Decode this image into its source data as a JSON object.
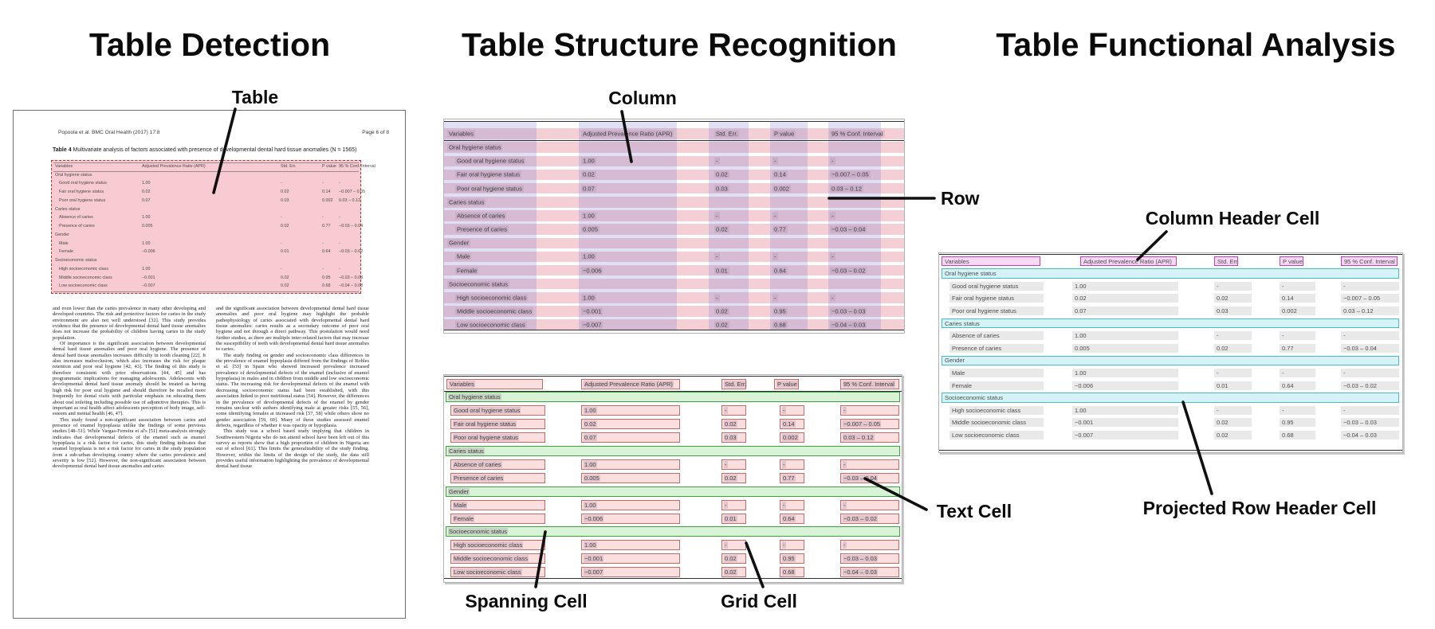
{
  "titles": {
    "detection": "Table Detection",
    "structure": "Table Structure Recognition",
    "functional": "Table Functional Analysis"
  },
  "labels": {
    "table": "Table",
    "column": "Column",
    "row": "Row",
    "spanning_cell": "Spanning Cell",
    "grid_cell": "Grid Cell",
    "text_cell": "Text Cell",
    "column_header_cell": "Column Header Cell",
    "projected_row_header_cell": "Projected Row Header Cell"
  },
  "document": {
    "header_left": "Popoola et al. BMC Oral Health  (2017) 17:8",
    "header_right": "Page 6 of 8",
    "caption_bold": "Table 4",
    "caption_rest": " Multivariate analysis of factors associated with presence of developmental dental hard tissue anomalies (N = 1565)",
    "body_left": [
      "and even lower than the caries prevalence in many other developing and developed countries. The risk and protective factors for caries in the study environment are also not well understood [32]. This study provides evidence that the presence of developmental dental hard tissue anomalies does not increase the probability of children having caries in the study population.",
      "Of importance is the significant association between developmental dental hard tissue anomalies and poor oral hygiene. The presence of dental hard tissue anomalies increases difficulty in tooth cleaning [22]. It also increases malocclusion, which also increases the risk for plaque retention and poor oral hygiene [42, 43]. The finding of this study is therefore consistent with prior observations [44, 45] and has programmatic implications for managing adolescents. Adolescents with developmental dental hard tissue anomaly should be treated as having high risk for poor oral hygiene and should therefore be recalled more frequently for dental visits with particular emphasis on educating them about oral toileting including possible use of adjunctive therapies. This is important as oral health affect adolescents perception of body image, self-esteem and mental health [46, 47].",
      "This study found a non-significant association between caries and presence of enamel hypoplasia unlike the findings of some previous studies [48–51]. While Vargas-Ferreira et al's [51] meta-analysis strongly indicates that developmental defects of the enamel such as enamel hypoplasia is a risk factor for caries, this study finding indicates that enamel hypoplasia is not a risk factor for caries in the study population from a sub-urban developing country where the caries prevalence and severity is low [52]. However, the non-significant association between developmental dental hard tissue anomalies and caries"
    ],
    "body_right": [
      "and the significant association between developmental dental hard tissue anomalies and poor oral hygiene may highlight the probable pathophysiology of caries associated with developmental dental hard tissue anomalies: caries results as a secondary outcome of poor oral hygiene and not through a direct pathway. This postulation would need further studies, as there are multiple inter-related factors that may increase the susceptibility of teeth with developmental dental hard tissue anomalies to caries.",
      "The study finding on gender and socioeconomic class differences in the prevalence of enamel hypoplasia differed from the findings of Robles et al. [53] in Spain who showed increased prevalence increased prevalence of developmental defects of the enamel (inclusive of enamel hypoplasia) in males and in children from middle and low socioeconomic status. The increasing risk for developmental defects of the enamel with decreasing socioeconomic status had been established, with this association linked to poor nutritional status [54]. However, the differences in the prevalence of developmental defects of the enamel by gender remains unclear with authors identifying male at greater risks [55, 56], some identifying females at increased risk [57, 58] while others show no gender association [59, 60]. Many of these studies assessed enamel defects, regardless of whether it was opacity or hypoplasia.",
      "This study was a school based study implying that children in Southwestern Nigeria who do not attend school have been left out of this survey as reports show that a high proportion of children in Nigeria are out of school [61]. This limits the generalizability of the study finding. However, within the limits of the design of the study, the data still provides useful information highlighting the prevalence of developmental dental hard tissue"
    ]
  },
  "table": {
    "headers": [
      "Variables",
      "Adjusted Prevalence Ratio (APR)",
      "Std. Err.",
      "P value",
      "95 % Conf. Interval"
    ],
    "rows": [
      {
        "label": "Oral hygiene status",
        "section": true,
        "apr": "",
        "se": "",
        "p": "",
        "ci": ""
      },
      {
        "label": "Good oral hygiene status",
        "section": false,
        "apr": "1.00",
        "se": "-",
        "p": "-",
        "ci": "-"
      },
      {
        "label": "Fair oral hygiene status",
        "section": false,
        "apr": "0.02",
        "se": "0.02",
        "p": "0.14",
        "ci": "−0.007 – 0.05"
      },
      {
        "label": "Poor oral hygiene status",
        "section": false,
        "apr": "0.07",
        "se": "0.03",
        "p": "0.002",
        "ci": "0.03 – 0.12"
      },
      {
        "label": "Caries status",
        "section": true,
        "apr": "",
        "se": "",
        "p": "",
        "ci": ""
      },
      {
        "label": "Absence of caries",
        "section": false,
        "apr": "1.00",
        "se": "-",
        "p": "-",
        "ci": "-"
      },
      {
        "label": "Presence of caries",
        "section": false,
        "apr": "0.005",
        "se": "0.02",
        "p": "0.77",
        "ci": "−0.03 – 0.04"
      },
      {
        "label": "Gender",
        "section": true,
        "apr": "",
        "se": "",
        "p": "",
        "ci": ""
      },
      {
        "label": "Male",
        "section": false,
        "apr": "1.00",
        "se": "-",
        "p": "-",
        "ci": "-"
      },
      {
        "label": "Female",
        "section": false,
        "apr": "−0.006",
        "se": "0.01",
        "p": "0.64",
        "ci": "−0.03 – 0.02"
      },
      {
        "label": "Socioeconomic status",
        "section": true,
        "apr": "",
        "se": "",
        "p": "",
        "ci": ""
      },
      {
        "label": "High socioeconomic class",
        "section": false,
        "apr": "1.00",
        "se": "-",
        "p": "-",
        "ci": "-"
      },
      {
        "label": "Middle socioeconomic class",
        "section": false,
        "apr": "−0.001",
        "se": "0.02",
        "p": "0.95",
        "ci": "−0.03 – 0.03"
      },
      {
        "label": "Low socioeconomic class",
        "section": false,
        "apr": "−0.007",
        "se": "0.02",
        "p": "0.68",
        "ci": "−0.04 – 0.03"
      }
    ]
  },
  "colors": {
    "detection_fill": "#f7cbd1",
    "detection_border": "#b23b31",
    "row_overlay": "rgba(222,105,125,0.32)",
    "column_overlay": "rgba(125,125,215,0.24)",
    "text_cell_fill": "#fbdfdf",
    "text_cell_border": "#c56a6a",
    "spanning_fill": "#d9f3d7",
    "spanning_border": "#3da23d",
    "column_header_fill": "#f7d8f3",
    "column_header_border": "#bb44bb",
    "projected_header_fill": "#d5f3f6",
    "projected_header_border": "#44bdc7",
    "grid_cell_gray": "#e9e9e9",
    "arrow_color": "#101010"
  }
}
